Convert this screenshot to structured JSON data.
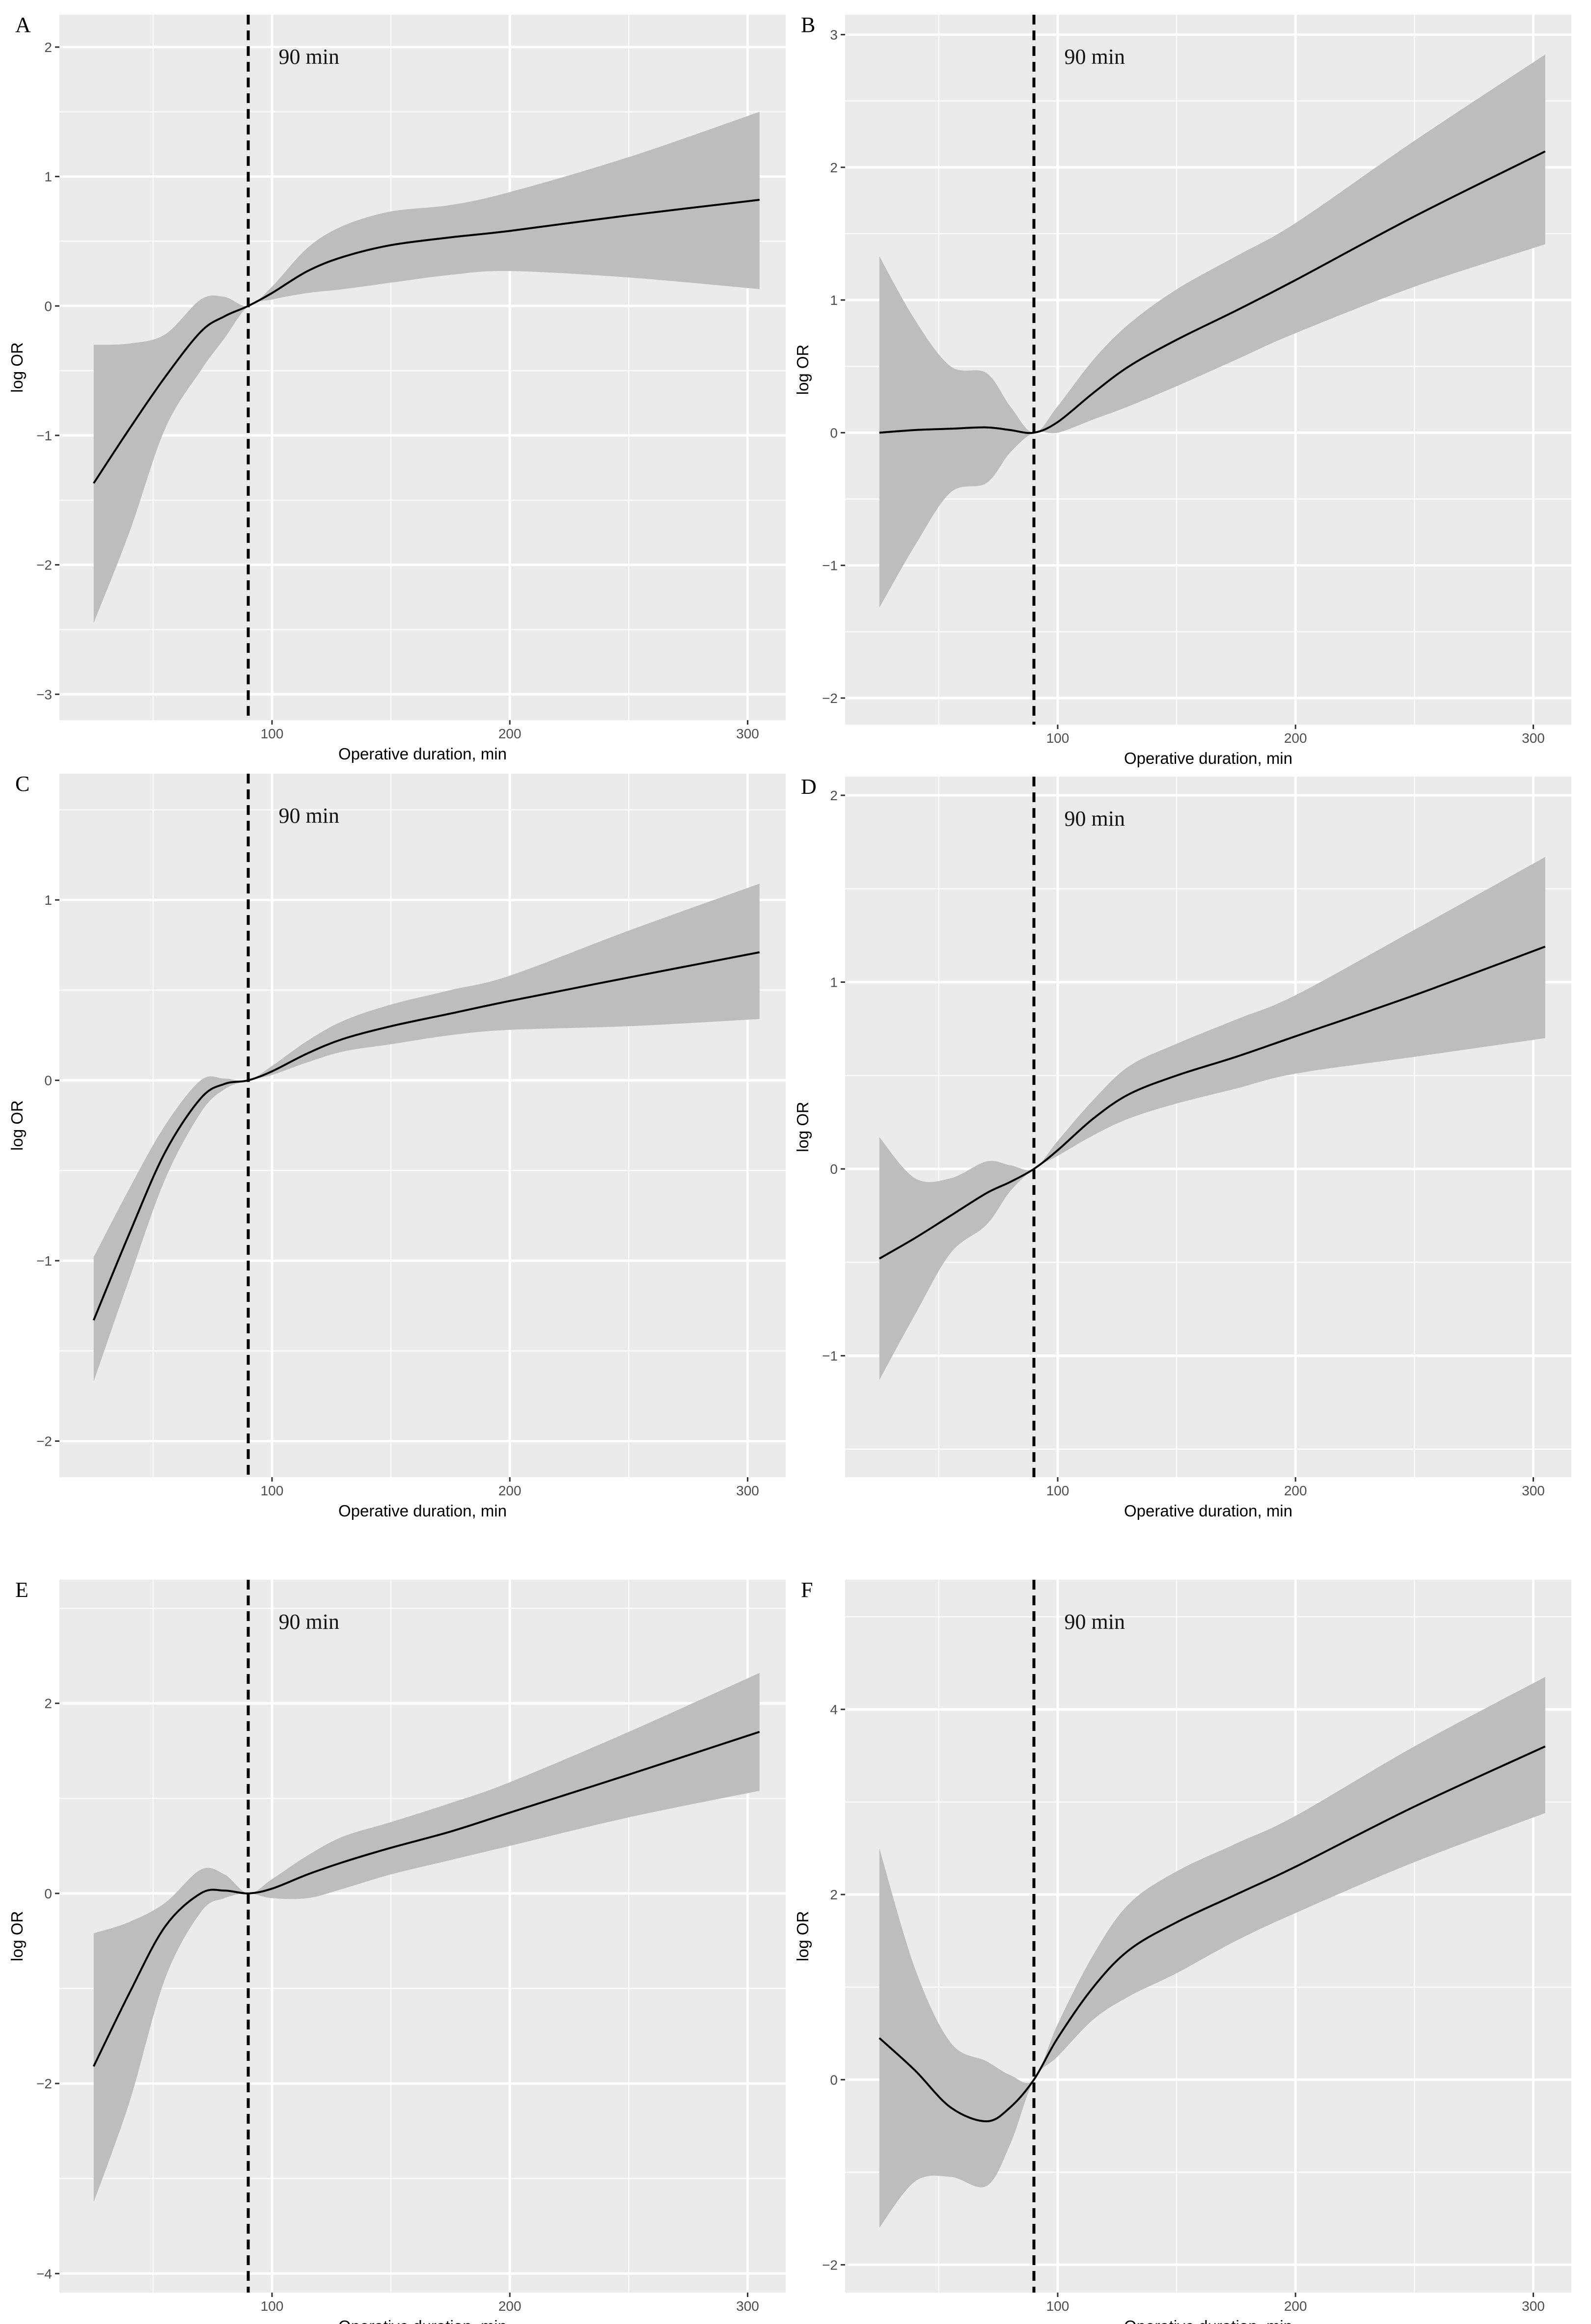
{
  "chart_data": [
    {
      "type": "line",
      "panel": "A",
      "xlabel": "Operative duration, min",
      "ylabel": "log OR",
      "annotation": "90 min",
      "vline": 90,
      "xlim": [
        10.6,
        316
      ],
      "ylim": [
        -3.2,
        2.25
      ],
      "xticks": [
        100,
        200,
        300
      ],
      "yticks": [
        2,
        1,
        0,
        -1,
        -2,
        -3
      ],
      "ytick_labels": [
        "2",
        "1",
        "0",
        "−1",
        "−2",
        "−3"
      ],
      "x": [
        25,
        40,
        55,
        70,
        80,
        90,
        100,
        115,
        130,
        150,
        175,
        200,
        250,
        305
      ],
      "y": [
        -1.37,
        -0.95,
        -0.55,
        -0.2,
        -0.08,
        0,
        0.1,
        0.27,
        0.38,
        0.47,
        0.53,
        0.58,
        0.7,
        0.82
      ],
      "lower": [
        -2.45,
        -1.75,
        -0.95,
        -0.5,
        -0.25,
        0,
        0.05,
        0.1,
        0.13,
        0.18,
        0.24,
        0.27,
        0.22,
        0.13
      ],
      "upper": [
        -0.3,
        -0.29,
        -0.22,
        0.05,
        0.07,
        0,
        0.15,
        0.45,
        0.62,
        0.73,
        0.78,
        0.88,
        1.15,
        1.5
      ]
    },
    {
      "type": "line",
      "panel": "B",
      "xlabel": "Operative duration, min",
      "ylabel": "log OR",
      "annotation": "90 min",
      "vline": 90,
      "xlim": [
        10.6,
        316
      ],
      "ylim": [
        -2.2,
        3.15
      ],
      "xticks": [
        100,
        200,
        300
      ],
      "yticks": [
        3,
        2,
        1,
        0,
        -1,
        -2
      ],
      "ytick_labels": [
        "3",
        "2",
        "1",
        "0",
        "−1",
        "−2"
      ],
      "x": [
        25,
        40,
        55,
        70,
        80,
        90,
        100,
        115,
        130,
        150,
        175,
        200,
        250,
        305
      ],
      "y": [
        0,
        0.02,
        0.03,
        0.04,
        0.02,
        0,
        0.08,
        0.3,
        0.5,
        0.7,
        0.92,
        1.15,
        1.63,
        2.12
      ],
      "lower": [
        -1.32,
        -0.85,
        -0.45,
        -0.38,
        -0.15,
        0,
        0,
        0.1,
        0.2,
        0.35,
        0.55,
        0.75,
        1.1,
        1.42
      ],
      "upper": [
        1.33,
        0.85,
        0.5,
        0.45,
        0.2,
        0,
        0.2,
        0.55,
        0.82,
        1.08,
        1.33,
        1.58,
        2.2,
        2.85
      ]
    },
    {
      "type": "line",
      "panel": "C",
      "xlabel": "Operative duration, min",
      "ylabel": "log OR",
      "annotation": "90 min",
      "vline": 90,
      "xlim": [
        10.6,
        316
      ],
      "ylim": [
        -2.2,
        1.7
      ],
      "xticks": [
        100,
        200,
        300
      ],
      "yticks": [
        1,
        0,
        -1,
        -2
      ],
      "ytick_labels": [
        "1",
        "0",
        "−1",
        "−2"
      ],
      "x": [
        25,
        40,
        55,
        70,
        80,
        90,
        100,
        115,
        130,
        150,
        175,
        200,
        250,
        305
      ],
      "y": [
        -1.33,
        -0.85,
        -0.4,
        -0.1,
        -0.02,
        0,
        0.05,
        0.15,
        0.23,
        0.3,
        0.37,
        0.44,
        0.57,
        0.71
      ],
      "lower": [
        -1.67,
        -1.1,
        -0.55,
        -0.18,
        -0.05,
        0,
        0.03,
        0.1,
        0.16,
        0.2,
        0.25,
        0.28,
        0.3,
        0.34
      ],
      "upper": [
        -0.98,
        -0.6,
        -0.25,
        0,
        0.01,
        0,
        0.08,
        0.22,
        0.33,
        0.42,
        0.5,
        0.58,
        0.83,
        1.09
      ]
    },
    {
      "type": "line",
      "panel": "D",
      "xlabel": "Operative duration, min",
      "ylabel": "log OR",
      "annotation": "90 min",
      "vline": 90,
      "xlim": [
        10.6,
        316
      ],
      "ylim": [
        -1.65,
        2.1
      ],
      "xticks": [
        100,
        200,
        300
      ],
      "yticks": [
        2,
        1,
        0,
        -1
      ],
      "ytick_labels": [
        "2",
        "1",
        "0",
        "−1"
      ],
      "x": [
        25,
        40,
        55,
        70,
        80,
        90,
        100,
        115,
        130,
        150,
        175,
        200,
        250,
        305
      ],
      "y": [
        -0.48,
        -0.37,
        -0.25,
        -0.13,
        -0.07,
        0,
        0.1,
        0.27,
        0.4,
        0.5,
        0.6,
        0.71,
        0.93,
        1.19
      ],
      "lower": [
        -1.13,
        -0.78,
        -0.45,
        -0.3,
        -0.12,
        0,
        0.07,
        0.18,
        0.27,
        0.35,
        0.43,
        0.51,
        0.6,
        0.7
      ],
      "upper": [
        0.17,
        -0.05,
        -0.05,
        0.04,
        0.02,
        0,
        0.15,
        0.37,
        0.55,
        0.67,
        0.8,
        0.93,
        1.28,
        1.67
      ]
    },
    {
      "type": "line",
      "panel": "E",
      "xlabel": "Operative duration, min",
      "ylabel": "log OR",
      "annotation": "90 min",
      "vline": 90,
      "xlim": [
        10.6,
        316
      ],
      "ylim": [
        -4.2,
        3.3
      ],
      "xticks": [
        100,
        200,
        300
      ],
      "yticks": [
        2,
        0,
        -2,
        -4
      ],
      "ytick_labels": [
        "2",
        "0",
        "−2",
        "−4"
      ],
      "x": [
        25,
        40,
        55,
        70,
        80,
        90,
        100,
        115,
        130,
        150,
        175,
        200,
        250,
        305
      ],
      "y": [
        -1.82,
        -1.05,
        -0.35,
        0,
        0.03,
        0,
        0.05,
        0.2,
        0.33,
        0.48,
        0.65,
        0.85,
        1.25,
        1.7
      ],
      "lower": [
        -3.25,
        -2.2,
        -0.9,
        -0.2,
        -0.05,
        0,
        -0.05,
        -0.05,
        0.05,
        0.2,
        0.35,
        0.5,
        0.8,
        1.08
      ],
      "upper": [
        -0.42,
        -0.3,
        -0.1,
        0.25,
        0.2,
        0,
        0.15,
        0.4,
        0.6,
        0.75,
        0.95,
        1.17,
        1.7,
        2.32
      ]
    },
    {
      "type": "line",
      "panel": "F",
      "xlabel": "Operative duration, min",
      "ylabel": "log OR",
      "annotation": "90 min",
      "vline": 90,
      "xlim": [
        10.6,
        316
      ],
      "ylim": [
        -2.3,
        5.4
      ],
      "xticks": [
        100,
        200,
        300
      ],
      "yticks": [
        4,
        2,
        0,
        -2
      ],
      "ytick_labels": [
        "4",
        "2",
        "0",
        "−2"
      ],
      "x": [
        25,
        40,
        55,
        70,
        80,
        90,
        100,
        115,
        130,
        150,
        175,
        200,
        250,
        305
      ],
      "y": [
        0.45,
        0.1,
        -0.3,
        -0.45,
        -0.3,
        0,
        0.45,
        1.0,
        1.4,
        1.7,
        2.0,
        2.3,
        2.95,
        3.6
      ],
      "lower": [
        -1.6,
        -1.1,
        -1.05,
        -1.15,
        -0.7,
        0,
        0.25,
        0.65,
        0.9,
        1.15,
        1.5,
        1.8,
        2.35,
        2.88
      ],
      "upper": [
        2.5,
        1.2,
        0.4,
        0.2,
        0.05,
        0,
        0.6,
        1.35,
        1.9,
        2.25,
        2.55,
        2.85,
        3.6,
        4.35
      ]
    }
  ],
  "colors": {
    "panel_bg": "#ebebeb",
    "grid": "#ffffff",
    "ribbon": "#bdbdbd",
    "line": "#000000"
  }
}
